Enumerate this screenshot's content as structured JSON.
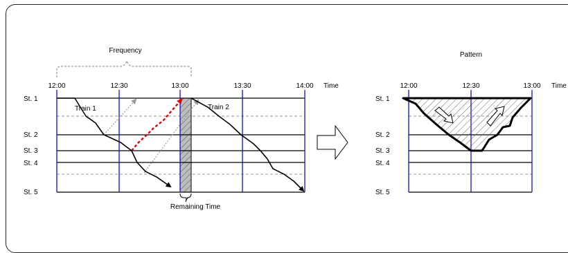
{
  "left_diagram": {
    "time_label": "Time",
    "times": [
      "12:00",
      "12:30",
      "13:00",
      "13:30",
      "14:00"
    ],
    "stations": [
      "St. 1",
      "St. 2",
      "St. 3",
      "St. 4",
      "St. 5"
    ],
    "train1_label": "Train 1",
    "train2_label": "Train 2",
    "frequency_label": "Frequency",
    "remaining_time_label": "Remaining Time"
  },
  "right_diagram": {
    "title": "Pattern",
    "time_label": "Time",
    "times": [
      "12:00",
      "12:30",
      "13:00"
    ],
    "stations": [
      "St. 1",
      "St. 2",
      "St. 3",
      "St. 4",
      "St. 5"
    ]
  },
  "colors": {
    "line": "#000000",
    "grid_vertical": "#1010c8",
    "dashed_gray": "#a0a0a0",
    "highlight_red": "#e00000",
    "hatch_fill": "#9a9a9a"
  },
  "icons": [
    "right-arrow-icon"
  ]
}
